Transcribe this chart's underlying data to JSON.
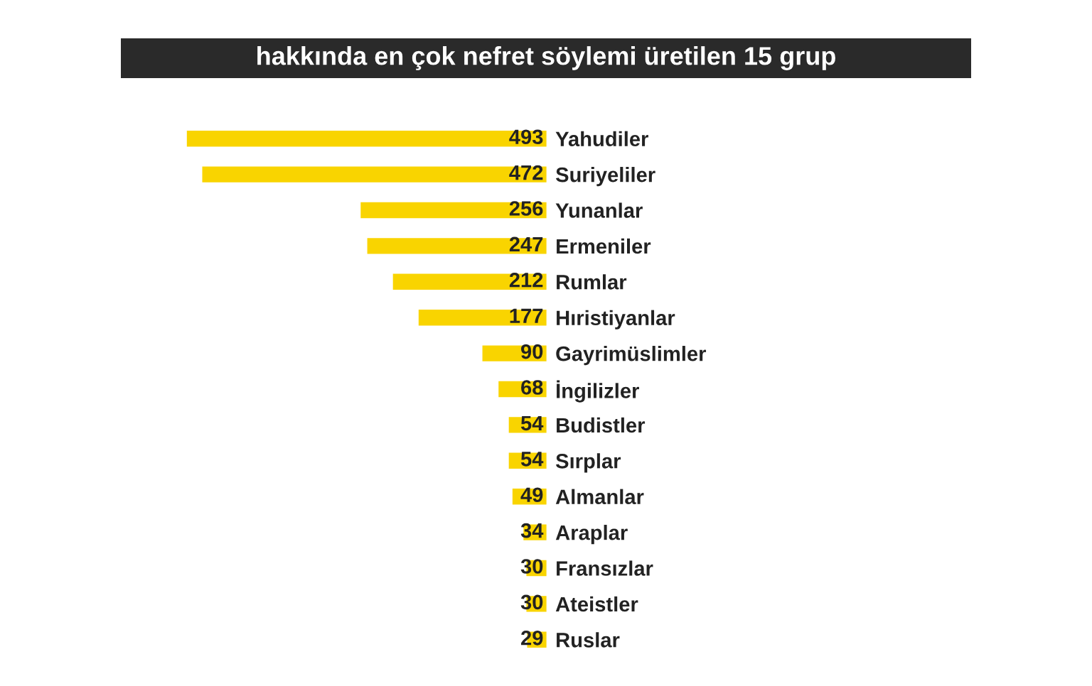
{
  "chart_data": {
    "type": "bar",
    "orientation": "horizontal",
    "title": "hakkında en çok nefret söylemi üretilen 15 grup",
    "categories": [
      "Yahudiler",
      "Suriyeliler",
      "Yunanlar",
      "Ermeniler",
      "Rumlar",
      "Hıristiyanlar",
      "Gayrimüslimler",
      "İngilizler",
      "Budistler",
      "Sırplar",
      "Almanlar",
      "Araplar",
      "Fransızlar",
      "Ateistler",
      "Ruslar"
    ],
    "values": [
      493,
      472,
      256,
      247,
      212,
      177,
      90,
      68,
      54,
      54,
      49,
      34,
      30,
      30,
      29
    ],
    "color": "#f9d400",
    "data_labels": true,
    "grid": false,
    "legend": false
  }
}
